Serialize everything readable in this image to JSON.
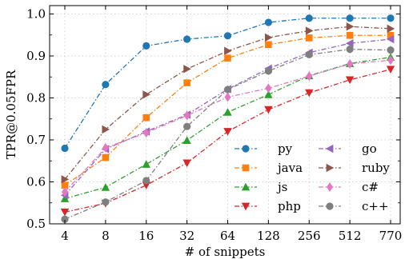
{
  "chart_data": {
    "type": "line",
    "xlabel": "# of snippets",
    "ylabel": "TPR@0.05FPR",
    "categories": [
      "4",
      "8",
      "16",
      "32",
      "64",
      "128",
      "256",
      "512",
      "770"
    ],
    "ylim": [
      0.5,
      1.02
    ],
    "yticks": [
      "0.5",
      "0.6",
      "0.7",
      "0.8",
      "0.9",
      "1.0"
    ],
    "grid": true,
    "legend_position": "bottom-right",
    "series": [
      {
        "name": "py",
        "color": "#1f77b4",
        "marker": "circle",
        "values": [
          0.68,
          0.832,
          0.924,
          0.94,
          0.948,
          0.98,
          0.99,
          0.99,
          0.99
        ]
      },
      {
        "name": "java",
        "color": "#ff7f0e",
        "marker": "square",
        "values": [
          0.592,
          0.658,
          0.753,
          0.836,
          0.895,
          0.927,
          0.943,
          0.949,
          0.949
        ]
      },
      {
        "name": "js",
        "color": "#2ca02c",
        "marker": "triangle-up",
        "values": [
          0.56,
          0.587,
          0.642,
          0.699,
          0.766,
          0.808,
          0.853,
          0.882,
          0.897
        ]
      },
      {
        "name": "php",
        "color": "#d62728",
        "marker": "triangle-down",
        "values": [
          0.528,
          0.549,
          0.592,
          0.645,
          0.72,
          0.772,
          0.812,
          0.843,
          0.868
        ]
      },
      {
        "name": "go",
        "color": "#9467bd",
        "marker": "triangle-left",
        "values": [
          0.568,
          0.678,
          0.72,
          0.76,
          0.821,
          0.87,
          0.908,
          0.93,
          0.94
        ]
      },
      {
        "name": "ruby",
        "color": "#8c564b",
        "marker": "triangle-right",
        "values": [
          0.606,
          0.725,
          0.808,
          0.869,
          0.912,
          0.944,
          0.96,
          0.97,
          0.965
        ]
      },
      {
        "name": "c#",
        "color": "#e377c2",
        "marker": "diamond",
        "values": [
          0.576,
          0.681,
          0.717,
          0.758,
          0.802,
          0.823,
          0.852,
          0.881,
          0.89
        ]
      },
      {
        "name": "c++",
        "color": "#7f7f7f",
        "marker": "circle",
        "values": [
          0.511,
          0.552,
          0.603,
          0.732,
          0.82,
          0.864,
          0.903,
          0.916,
          0.914
        ]
      }
    ]
  }
}
